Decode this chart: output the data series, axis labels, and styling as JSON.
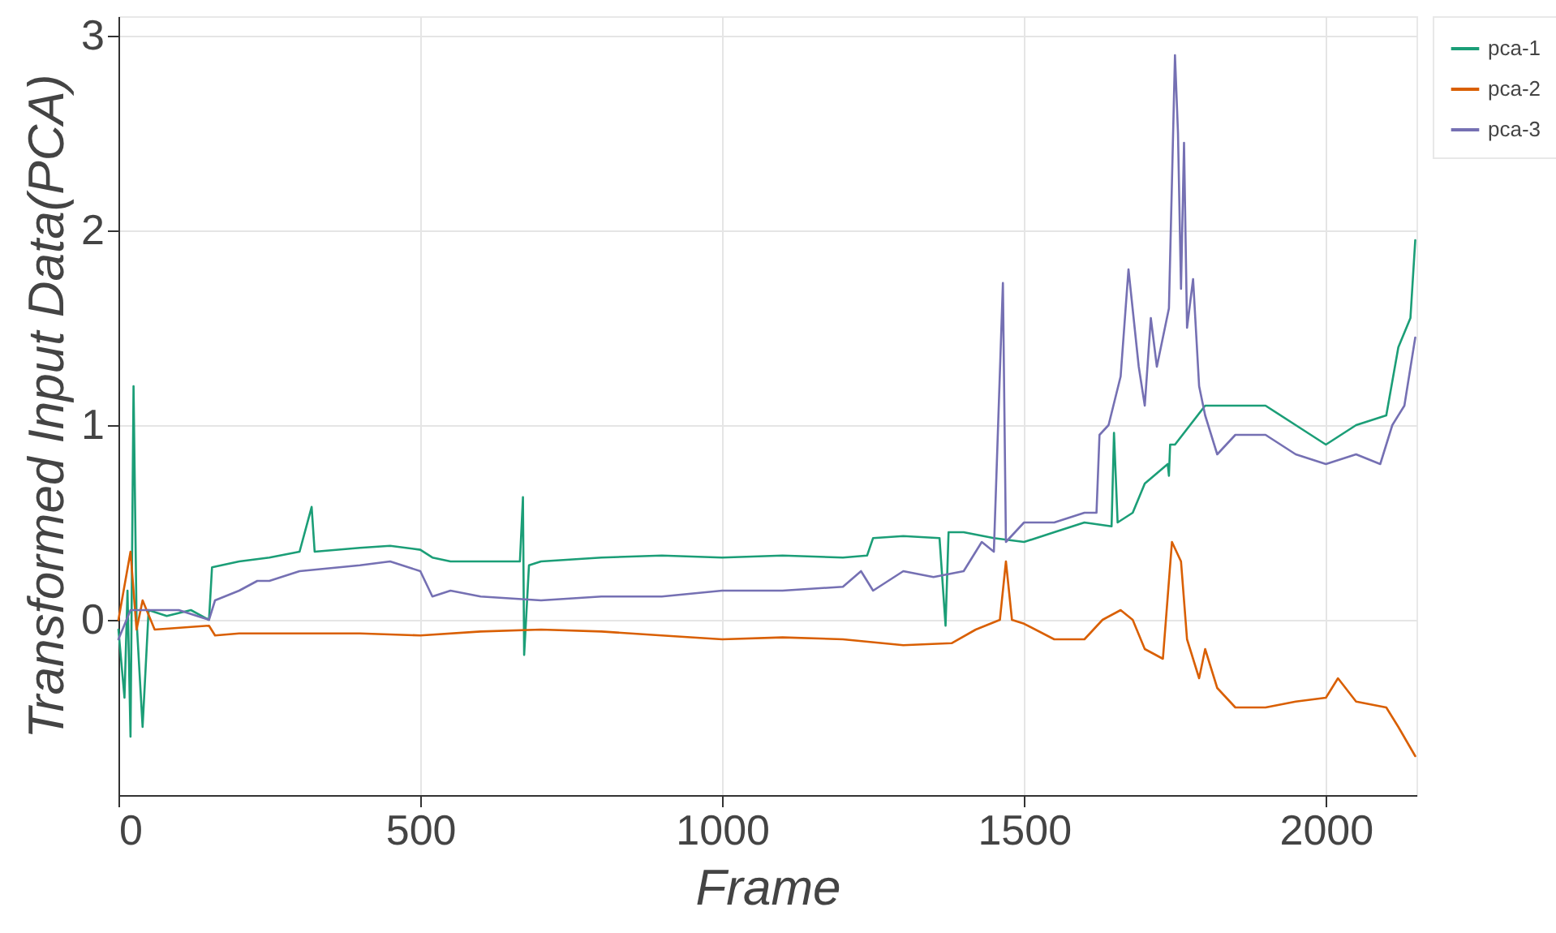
{
  "chart_data": {
    "type": "line",
    "xlabel": "Frame",
    "ylabel": "Transformed Input Data(PCA)",
    "xlim": [
      0,
      2150
    ],
    "ylim": [
      -0.9,
      3.1
    ],
    "xticks": [
      0,
      500,
      1000,
      1500,
      2000
    ],
    "yticks": [
      0,
      1,
      2,
      3
    ],
    "grid": true,
    "legend": "right",
    "line_style": "solid",
    "marker": "none",
    "series": [
      {
        "name": "pca-1",
        "color": "#1b9e77",
        "x": [
          0,
          10,
          15,
          20,
          25,
          30,
          40,
          50,
          80,
          120,
          150,
          155,
          200,
          250,
          300,
          320,
          325,
          400,
          450,
          500,
          520,
          550,
          600,
          665,
          670,
          672,
          680,
          700,
          800,
          900,
          1000,
          1100,
          1200,
          1240,
          1250,
          1300,
          1360,
          1370,
          1375,
          1400,
          1450,
          1500,
          1550,
          1600,
          1645,
          1649,
          1655,
          1680,
          1700,
          1738,
          1740,
          1742,
          1750,
          1800,
          1850,
          1900,
          1950,
          2000,
          2050,
          2100,
          2120,
          2140,
          2148
        ],
        "values": [
          -0.05,
          -0.4,
          0.15,
          -0.6,
          1.2,
          0.0,
          -0.55,
          0.05,
          0.02,
          0.05,
          0.0,
          0.27,
          0.3,
          0.32,
          0.35,
          0.58,
          0.35,
          0.37,
          0.38,
          0.36,
          0.32,
          0.3,
          0.3,
          0.3,
          0.63,
          -0.18,
          0.28,
          0.3,
          0.32,
          0.33,
          0.32,
          0.33,
          0.32,
          0.33,
          0.42,
          0.43,
          0.42,
          -0.03,
          0.45,
          0.45,
          0.42,
          0.4,
          0.45,
          0.5,
          0.48,
          0.96,
          0.5,
          0.55,
          0.7,
          0.8,
          0.74,
          0.9,
          0.9,
          1.1,
          1.1,
          1.1,
          1.0,
          0.9,
          1.0,
          1.05,
          1.4,
          1.55,
          1.95
        ]
      },
      {
        "name": "pca-2",
        "color": "#d95f02",
        "x": [
          0,
          20,
          30,
          40,
          60,
          150,
          160,
          200,
          300,
          400,
          500,
          600,
          700,
          800,
          900,
          1000,
          1100,
          1200,
          1300,
          1380,
          1420,
          1460,
          1470,
          1480,
          1500,
          1550,
          1600,
          1630,
          1660,
          1680,
          1700,
          1730,
          1745,
          1760,
          1770,
          1790,
          1800,
          1820,
          1850,
          1900,
          1950,
          2000,
          2020,
          2050,
          2100,
          2120,
          2148
        ],
        "values": [
          0.0,
          0.35,
          -0.05,
          0.1,
          -0.05,
          -0.03,
          -0.08,
          -0.07,
          -0.07,
          -0.07,
          -0.08,
          -0.06,
          -0.05,
          -0.06,
          -0.08,
          -0.1,
          -0.09,
          -0.1,
          -0.13,
          -0.12,
          -0.05,
          0.0,
          0.3,
          0.0,
          -0.02,
          -0.1,
          -0.1,
          0.0,
          0.05,
          0.0,
          -0.15,
          -0.2,
          0.4,
          0.3,
          -0.1,
          -0.3,
          -0.15,
          -0.35,
          -0.45,
          -0.45,
          -0.42,
          -0.4,
          -0.3,
          -0.42,
          -0.45,
          -0.55,
          -0.7
        ]
      },
      {
        "name": "pca-3",
        "color": "#7570b3",
        "x": [
          0,
          20,
          50,
          100,
          150,
          160,
          200,
          230,
          250,
          300,
          400,
          450,
          500,
          520,
          550,
          600,
          700,
          800,
          900,
          1000,
          1100,
          1200,
          1230,
          1250,
          1300,
          1350,
          1400,
          1430,
          1450,
          1465,
          1470,
          1500,
          1550,
          1600,
          1620,
          1625,
          1640,
          1660,
          1673,
          1690,
          1700,
          1710,
          1720,
          1740,
          1750,
          1755,
          1760,
          1765,
          1770,
          1780,
          1790,
          1800,
          1820,
          1850,
          1900,
          1950,
          2000,
          2050,
          2090,
          2110,
          2130,
          2148
        ],
        "values": [
          -0.1,
          0.05,
          0.05,
          0.05,
          0.0,
          0.1,
          0.15,
          0.2,
          0.2,
          0.25,
          0.28,
          0.3,
          0.25,
          0.12,
          0.15,
          0.12,
          0.1,
          0.12,
          0.12,
          0.15,
          0.15,
          0.17,
          0.25,
          0.15,
          0.25,
          0.22,
          0.25,
          0.4,
          0.35,
          1.73,
          0.4,
          0.5,
          0.5,
          0.55,
          0.55,
          0.95,
          1.0,
          1.25,
          1.8,
          1.3,
          1.1,
          1.55,
          1.3,
          1.6,
          2.9,
          2.5,
          1.7,
          2.45,
          1.5,
          1.75,
          1.2,
          1.05,
          0.85,
          0.95,
          0.95,
          0.85,
          0.8,
          0.85,
          0.8,
          1.0,
          1.1,
          1.45
        ]
      }
    ]
  }
}
